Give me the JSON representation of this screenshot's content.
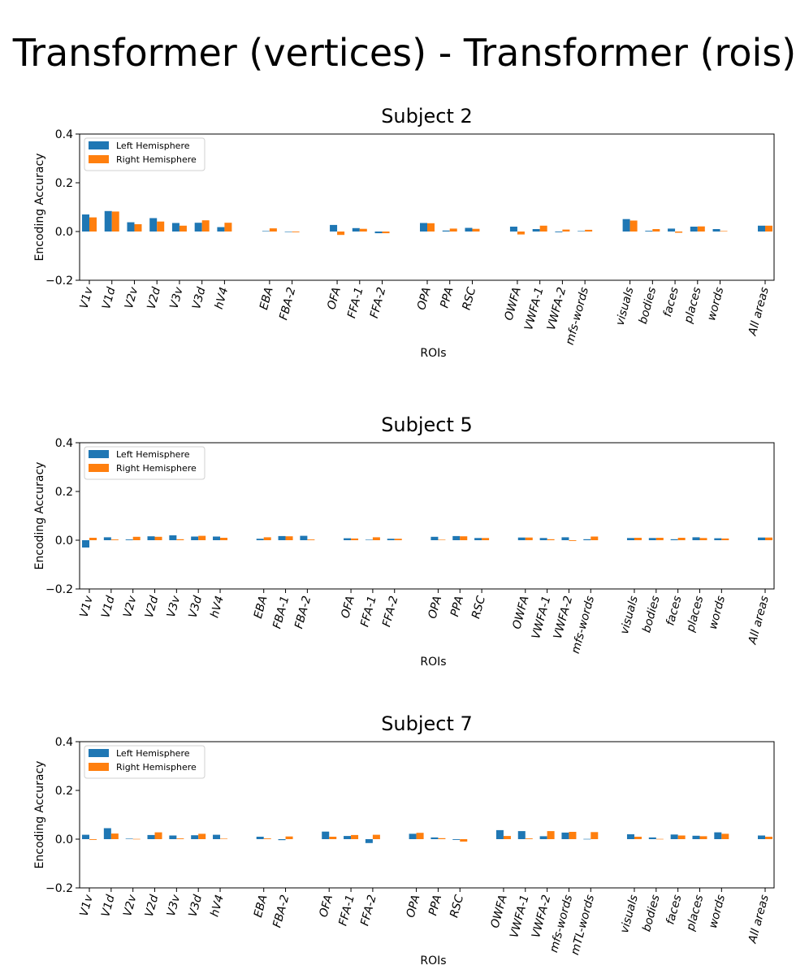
{
  "main_title": "Transformer (vertices) - Transformer (rois)",
  "colors": {
    "left": "#1f77b4",
    "right": "#ff7f0e"
  },
  "chart_data": [
    {
      "type": "bar",
      "title": "Subject 2",
      "xlabel": "ROIs",
      "ylabel": "Encoding Accuracy",
      "ylim": [
        -0.2,
        0.4
      ],
      "yticks": [
        "−0.2",
        "0.0",
        "0.2",
        "0.4"
      ],
      "legend": [
        "Left Hemisphere",
        "Right Hemisphere"
      ],
      "categories": [
        "V1v",
        "V1d",
        "V2v",
        "V2d",
        "V3v",
        "V3d",
        "hV4",
        "",
        "EBA",
        "FBA-2",
        "",
        "OFA",
        "FFA-1",
        "FFA-2",
        "",
        "OPA",
        "PPA",
        "RSC",
        "",
        "OWFA",
        "VWFA-1",
        "VWFA-2",
        "mfs-words",
        "",
        "visuals",
        "bodies",
        "faces",
        "places",
        "words",
        "",
        "All areas"
      ],
      "series": [
        {
          "name": "Left Hemisphere",
          "values": [
            0.07,
            0.084,
            0.038,
            0.055,
            0.035,
            0.036,
            0.018,
            null,
            0.002,
            -0.002,
            null,
            0.027,
            0.014,
            -0.007,
            null,
            0.035,
            0.004,
            0.015,
            null,
            0.02,
            0.01,
            -0.003,
            0.002,
            null,
            0.051,
            0.003,
            0.012,
            0.02,
            0.01,
            null,
            0.024
          ]
        },
        {
          "name": "Right Hemisphere",
          "values": [
            0.058,
            0.082,
            0.03,
            0.041,
            0.024,
            0.046,
            0.036,
            null,
            0.013,
            -0.003,
            null,
            -0.014,
            0.011,
            -0.007,
            null,
            0.034,
            0.012,
            0.011,
            null,
            -0.012,
            0.024,
            0.008,
            0.007,
            null,
            0.045,
            0.01,
            -0.005,
            0.021,
            0.002,
            null,
            0.024
          ]
        }
      ]
    },
    {
      "type": "bar",
      "title": "Subject 5",
      "xlabel": "ROIs",
      "ylabel": "Encoding Accuracy",
      "ylim": [
        -0.2,
        0.4
      ],
      "yticks": [
        "−0.2",
        "0.0",
        "0.2",
        "0.4"
      ],
      "legend": [
        "Left Hemisphere",
        "Right Hemisphere"
      ],
      "categories": [
        "V1v",
        "V1d",
        "V2v",
        "V2d",
        "V3v",
        "V3d",
        "hV4",
        "",
        "EBA",
        "FBA-1",
        "FBA-2",
        "",
        "OFA",
        "FFA-1",
        "FFA-2",
        "",
        "OPA",
        "PPA",
        "RSC",
        "",
        "OWFA",
        "VWFA-1",
        "VWFA-2",
        "mfs-words",
        "",
        "visuals",
        "bodies",
        "faces",
        "places",
        "words",
        "",
        "All areas"
      ],
      "series": [
        {
          "name": "Left Hemisphere",
          "values": [
            -0.03,
            0.012,
            0.003,
            0.016,
            0.02,
            0.015,
            0.015,
            null,
            0.006,
            0.017,
            0.018,
            null,
            0.008,
            0.002,
            0.006,
            null,
            0.014,
            0.017,
            0.009,
            null,
            0.011,
            0.009,
            0.012,
            0.004,
            null,
            0.009,
            0.009,
            0.004,
            0.012,
            0.008,
            null,
            0.011
          ]
        },
        {
          "name": "Right Hemisphere",
          "values": [
            0.01,
            0.003,
            0.014,
            0.014,
            0.004,
            0.018,
            0.01,
            null,
            0.012,
            0.016,
            0.003,
            null,
            0.007,
            0.012,
            0.006,
            null,
            0.002,
            0.016,
            0.009,
            null,
            0.011,
            0.004,
            -0.003,
            0.015,
            null,
            0.01,
            0.01,
            0.01,
            0.009,
            0.007,
            null,
            0.011
          ]
        }
      ]
    },
    {
      "type": "bar",
      "title": "Subject 7",
      "xlabel": "ROIs",
      "ylabel": "Encoding Accuracy",
      "ylim": [
        -0.2,
        0.4
      ],
      "yticks": [
        "−0.2",
        "0.0",
        "0.2",
        "0.4"
      ],
      "legend": [
        "Left Hemisphere",
        "Right Hemisphere"
      ],
      "categories": [
        "V1v",
        "V1d",
        "V2v",
        "V2d",
        "V3v",
        "V3d",
        "hV4",
        "",
        "EBA",
        "FBA-2",
        "",
        "OFA",
        "FFA-1",
        "FFA-2",
        "",
        "OPA",
        "PPA",
        "RSC",
        "",
        "OWFA",
        "VWFA-1",
        "VWFA-2",
        "mfs-words",
        "mTL-words",
        "",
        "visuals",
        "bodies",
        "faces",
        "places",
        "words",
        "",
        "All areas"
      ],
      "series": [
        {
          "name": "Left Hemisphere",
          "values": [
            0.018,
            0.045,
            0.002,
            0.017,
            0.015,
            0.016,
            0.018,
            null,
            0.01,
            -0.004,
            null,
            0.031,
            0.013,
            -0.016,
            null,
            0.022,
            0.007,
            -0.003,
            null,
            0.037,
            0.033,
            0.012,
            0.027,
            0.001,
            null,
            0.02,
            0.007,
            0.019,
            0.014,
            0.028,
            null,
            0.015
          ]
        },
        {
          "name": "Right Hemisphere",
          "values": [
            -0.003,
            0.023,
            0.001,
            0.028,
            0.003,
            0.022,
            0.002,
            null,
            0.003,
            0.011,
            null,
            0.01,
            0.017,
            0.018,
            null,
            0.026,
            0.004,
            -0.01,
            null,
            0.013,
            0.003,
            0.033,
            0.03,
            0.029,
            null,
            0.01,
            0.001,
            0.015,
            0.012,
            0.022,
            null,
            0.01
          ]
        }
      ]
    }
  ]
}
